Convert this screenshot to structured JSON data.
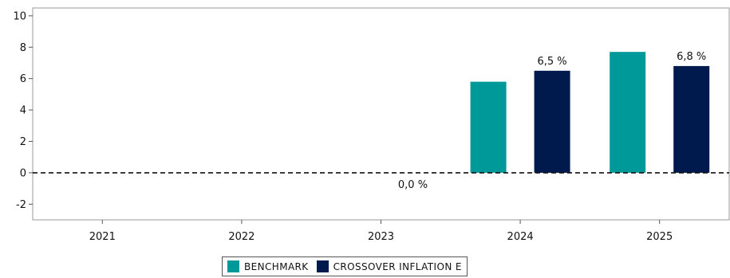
{
  "chart_data": {
    "type": "bar",
    "categories": [
      "2021",
      "2022",
      "2023",
      "2024",
      "2025"
    ],
    "series": [
      {
        "name": "BENCHMARK",
        "color": "#00999a",
        "values": [
          null,
          null,
          null,
          5.8,
          7.7
        ]
      },
      {
        "name": "CROSSOVER INFLATION E",
        "color": "#001a4d",
        "values": [
          null,
          null,
          0.0,
          6.5,
          6.8
        ]
      }
    ],
    "data_labels": [
      {
        "category": "2023",
        "series": "CROSSOVER INFLATION E",
        "text": "0,0 %"
      },
      {
        "category": "2024",
        "series": "CROSSOVER INFLATION E",
        "text": "6,5 %"
      },
      {
        "category": "2025",
        "series": "CROSSOVER INFLATION E",
        "text": "6,8 %"
      }
    ],
    "ylim": [
      -3,
      10.5
    ],
    "yticks": [
      10,
      8,
      6,
      4,
      2,
      0,
      -2
    ],
    "zero_line": "dashed",
    "grid": false,
    "legend": "bottom-center",
    "title": "",
    "xlabel": "",
    "ylabel": ""
  }
}
